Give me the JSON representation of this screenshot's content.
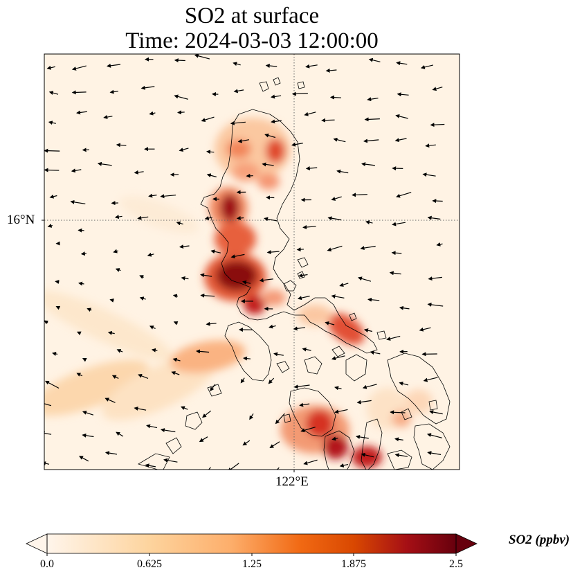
{
  "title": {
    "line1": "SO2 at surface",
    "line2": "Time: 2024-03-03 12:00:00"
  },
  "map": {
    "lat_label": "16°N",
    "lon_label": "122°E",
    "gridline_style": "dotted",
    "field": "SO2",
    "overlay": "wind vectors"
  },
  "colorbar": {
    "label": "SO2 (ppbv)",
    "ticks": [
      "0.0",
      "0.625",
      "1.25",
      "1.875",
      "2.5"
    ],
    "min": 0.0,
    "max": 2.5,
    "extend": "both",
    "colors": [
      "#fff5eb",
      "#fdd49e",
      "#fdae6b",
      "#f16913",
      "#d94801",
      "#a50f15",
      "#67000d"
    ]
  }
}
